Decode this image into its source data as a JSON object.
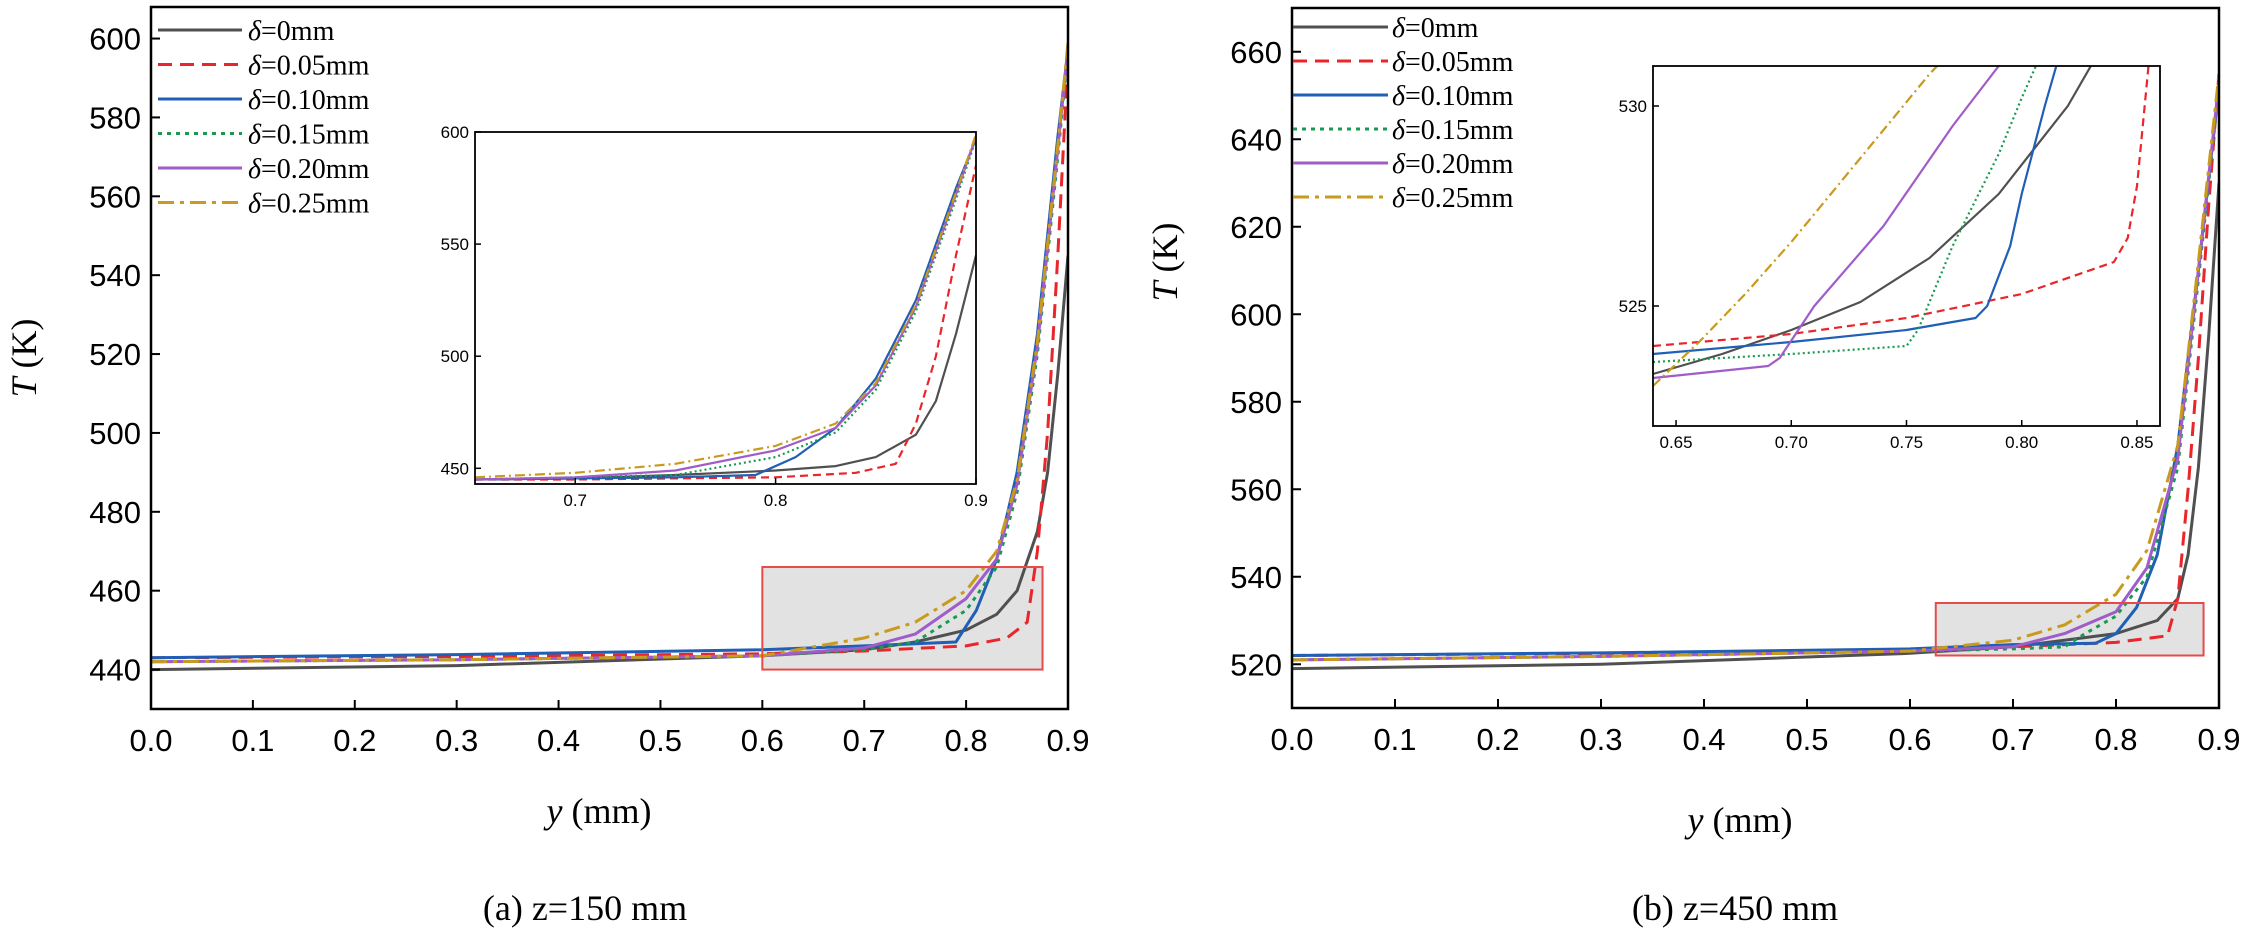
{
  "legend_delta_symbol": "δ",
  "chart_data": [
    {
      "type": "line",
      "panel": "a",
      "caption": "(a) z=150 mm",
      "xlabel_var": "y",
      "xlabel_unit": " (mm)",
      "ylabel_var": "T",
      "ylabel_unit": " (K)",
      "xlim": [
        0.0,
        0.9
      ],
      "ylim": [
        430,
        608
      ],
      "xticks": [
        "0.0",
        "0.1",
        "0.2",
        "0.3",
        "0.4",
        "0.5",
        "0.6",
        "0.7",
        "0.8",
        "0.9"
      ],
      "yticks": [
        "440",
        "460",
        "480",
        "500",
        "520",
        "540",
        "560",
        "580",
        "600"
      ],
      "highlight_box": {
        "x": [
          0.6,
          0.875
        ],
        "y": [
          440,
          466
        ]
      },
      "series": [
        {
          "name": "=0mm",
          "color": "#505050",
          "dash": "",
          "x": [
            0,
            0.3,
            0.6,
            0.7,
            0.75,
            0.8,
            0.83,
            0.85,
            0.87,
            0.88,
            0.89,
            0.9
          ],
          "y": [
            440,
            441,
            443.5,
            445,
            447,
            450,
            454,
            460,
            475,
            490,
            515,
            545
          ]
        },
        {
          "name": "=0.05mm",
          "color": "#e8262b",
          "dash": "14,8",
          "x": [
            0,
            0.3,
            0.6,
            0.7,
            0.8,
            0.84,
            0.86,
            0.87,
            0.88,
            0.89,
            0.9
          ],
          "y": [
            443,
            443.3,
            444,
            444.7,
            446,
            448,
            452,
            470,
            500,
            545,
            595
          ]
        },
        {
          "name": "=0.10mm",
          "color": "#1f5fb5",
          "dash": "",
          "x": [
            0,
            0.3,
            0.6,
            0.7,
            0.79,
            0.81,
            0.83,
            0.85,
            0.87,
            0.88,
            0.89,
            0.9
          ],
          "y": [
            443,
            443.8,
            445,
            446,
            447,
            455,
            468,
            490,
            525,
            550,
            575,
            597
          ]
        },
        {
          "name": "=0.15mm",
          "color": "#1a9a50",
          "dash": "4,5",
          "x": [
            0,
            0.3,
            0.6,
            0.7,
            0.75,
            0.8,
            0.83,
            0.85,
            0.87,
            0.88,
            0.89,
            0.9
          ],
          "y": [
            442,
            442.5,
            443.5,
            445,
            447,
            455,
            466,
            485,
            520,
            545,
            570,
            597
          ]
        },
        {
          "name": "=0.20mm",
          "color": "#a05cc8",
          "dash": "",
          "x": [
            0,
            0.3,
            0.6,
            0.7,
            0.75,
            0.8,
            0.83,
            0.85,
            0.87,
            0.88,
            0.89,
            0.9
          ],
          "y": [
            442,
            442.5,
            443.5,
            445.5,
            449,
            458,
            468,
            487,
            522,
            547,
            572,
            598
          ]
        },
        {
          "name": "=0.25mm",
          "color": "#c89a1e",
          "dash": "16,6,4,6",
          "x": [
            0,
            0.3,
            0.6,
            0.7,
            0.75,
            0.8,
            0.83,
            0.85,
            0.87,
            0.88,
            0.89,
            0.9
          ],
          "y": [
            442,
            442.5,
            443.5,
            448,
            452,
            460,
            470,
            488,
            523,
            548,
            573,
            599
          ]
        }
      ],
      "inset": {
        "xlim": [
          0.65,
          0.9
        ],
        "ylim": [
          443,
          600
        ],
        "xticks": [
          "0.7",
          "0.8",
          "0.9"
        ],
        "yticks": [
          "450",
          "500",
          "550",
          "600"
        ],
        "series": [
          {
            "x": [
              0.65,
              0.7,
              0.75,
              0.8,
              0.83,
              0.85,
              0.87,
              0.88,
              0.89,
              0.9
            ],
            "y": [
              445,
              445.5,
              447,
              449,
              451,
              455,
              465,
              480,
              510,
              545
            ]
          },
          {
            "x": [
              0.65,
              0.7,
              0.75,
              0.8,
              0.84,
              0.86,
              0.87,
              0.88,
              0.89,
              0.9
            ],
            "y": [
              445,
              445,
              445.5,
              446,
              448,
              452,
              470,
              500,
              545,
              585
            ]
          },
          {
            "x": [
              0.65,
              0.7,
              0.75,
              0.79,
              0.81,
              0.83,
              0.85,
              0.87,
              0.88,
              0.89,
              0.9
            ],
            "y": [
              445,
              445.5,
              446,
              447,
              455,
              468,
              490,
              525,
              550,
              575,
              597
            ]
          },
          {
            "x": [
              0.65,
              0.7,
              0.75,
              0.8,
              0.83,
              0.85,
              0.87,
              0.88,
              0.89,
              0.9
            ],
            "y": [
              445,
              446,
              447,
              455,
              466,
              485,
              520,
              545,
              570,
              597
            ]
          },
          {
            "x": [
              0.65,
              0.7,
              0.75,
              0.8,
              0.83,
              0.85,
              0.87,
              0.88,
              0.89,
              0.9
            ],
            "y": [
              445,
              446,
              449,
              458,
              468,
              487,
              522,
              547,
              572,
              598
            ]
          },
          {
            "x": [
              0.65,
              0.7,
              0.75,
              0.8,
              0.83,
              0.85,
              0.87,
              0.88,
              0.89,
              0.9
            ],
            "y": [
              446,
              448,
              452,
              460,
              470,
              488,
              523,
              548,
              573,
              599
            ]
          }
        ]
      }
    },
    {
      "type": "line",
      "panel": "b",
      "caption": "(b) z=450 mm",
      "xlabel_var": "y",
      "xlabel_unit": " (mm)",
      "ylabel_var": "T",
      "ylabel_unit": " (K)",
      "xlim": [
        0.0,
        0.9
      ],
      "ylim": [
        510,
        670
      ],
      "xticks": [
        "0.0",
        "0.1",
        "0.2",
        "0.3",
        "0.4",
        "0.5",
        "0.6",
        "0.7",
        "0.8",
        "0.9"
      ],
      "yticks": [
        "520",
        "540",
        "560",
        "580",
        "600",
        "620",
        "640",
        "660"
      ],
      "highlight_box": {
        "x": [
          0.625,
          0.885
        ],
        "y": [
          522,
          534
        ]
      },
      "series": [
        {
          "name": "=0mm",
          "color": "#505050",
          "dash": "",
          "x": [
            0,
            0.3,
            0.6,
            0.7,
            0.8,
            0.84,
            0.86,
            0.87,
            0.88,
            0.89,
            0.9
          ],
          "y": [
            519,
            520,
            522.5,
            524,
            527,
            530,
            535,
            545,
            565,
            595,
            630
          ]
        },
        {
          "name": "=0.05mm",
          "color": "#e8262b",
          "dash": "14,8",
          "x": [
            0,
            0.3,
            0.6,
            0.7,
            0.8,
            0.85,
            0.86,
            0.87,
            0.88,
            0.89,
            0.9
          ],
          "y": [
            522,
            522.5,
            523.2,
            524,
            525,
            526.5,
            535,
            560,
            590,
            625,
            655
          ]
        },
        {
          "name": "=0.10mm",
          "color": "#1f5fb5",
          "dash": "",
          "x": [
            0,
            0.3,
            0.6,
            0.7,
            0.78,
            0.8,
            0.82,
            0.84,
            0.86,
            0.88,
            0.9
          ],
          "y": [
            522,
            522.6,
            523.5,
            524.5,
            524.8,
            527,
            533,
            545,
            570,
            610,
            652
          ]
        },
        {
          "name": "=0.15mm",
          "color": "#1a9a50",
          "dash": "4,5",
          "x": [
            0,
            0.3,
            0.6,
            0.7,
            0.75,
            0.77,
            0.8,
            0.83,
            0.86,
            0.88,
            0.9
          ],
          "y": [
            521,
            521.8,
            523,
            523.5,
            524,
            527,
            531,
            540,
            565,
            608,
            652
          ]
        },
        {
          "name": "=0.20mm",
          "color": "#a05cc8",
          "dash": "",
          "x": [
            0,
            0.3,
            0.6,
            0.7,
            0.75,
            0.8,
            0.83,
            0.86,
            0.88,
            0.9
          ],
          "y": [
            521,
            521.8,
            523,
            524,
            527,
            532,
            542,
            567,
            610,
            653
          ]
        },
        {
          "name": "=0.25mm",
          "color": "#c89a1e",
          "dash": "16,6,4,6",
          "x": [
            0,
            0.3,
            0.6,
            0.7,
            0.75,
            0.8,
            0.83,
            0.86,
            0.88,
            0.9
          ],
          "y": [
            521,
            521.8,
            523,
            525.5,
            529,
            536,
            546,
            570,
            612,
            655
          ]
        }
      ],
      "inset": {
        "xlim": [
          0.64,
          0.86
        ],
        "ylim": [
          522.0,
          531.0
        ],
        "xticks": [
          "0.65",
          "0.70",
          "0.75",
          "0.80",
          "0.85"
        ],
        "yticks": [
          "525",
          "530"
        ],
        "series": [
          {
            "x": [
              0.64,
              0.67,
              0.7,
              0.73,
              0.76,
              0.79,
              0.82,
              0.84
            ],
            "y": [
              523.3,
              523.8,
              524.4,
              525.1,
              526.2,
              527.8,
              530.0,
              532.0
            ]
          },
          {
            "x": [
              0.64,
              0.7,
              0.75,
              0.8,
              0.84,
              0.846,
              0.85,
              0.855,
              0.86
            ],
            "y": [
              524.0,
              524.3,
              524.7,
              525.3,
              526.1,
              526.7,
              528.0,
              531.0,
              533.0
            ]
          },
          {
            "x": [
              0.64,
              0.7,
              0.75,
              0.78,
              0.785,
              0.795,
              0.8,
              0.81,
              0.82
            ],
            "y": [
              523.8,
              524.1,
              524.4,
              524.7,
              525.0,
              526.5,
              527.8,
              530.0,
              532.0
            ]
          },
          {
            "x": [
              0.64,
              0.7,
              0.75,
              0.755,
              0.77,
              0.79,
              0.8,
              0.81
            ],
            "y": [
              523.6,
              523.8,
              524.0,
              524.4,
              526.5,
              528.8,
              530.2,
              531.5
            ]
          },
          {
            "x": [
              0.64,
              0.69,
              0.695,
              0.71,
              0.74,
              0.77,
              0.79,
              0.8
            ],
            "y": [
              523.2,
              523.5,
              523.7,
              525.0,
              527.0,
              529.5,
              531.0,
              532.0
            ]
          },
          {
            "x": [
              0.64,
              0.66,
              0.68,
              0.7,
              0.72,
              0.74,
              0.76,
              0.78
            ],
            "y": [
              523.0,
              524.1,
              525.3,
              526.6,
              528.0,
              529.4,
              530.8,
              532.0
            ]
          }
        ]
      }
    }
  ]
}
